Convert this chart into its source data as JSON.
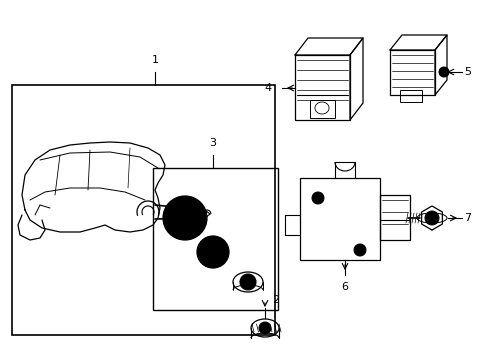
{
  "bg_color": "#ffffff",
  "line_color": "#000000",
  "fig_width": 4.89,
  "fig_height": 3.6,
  "dpi": 100
}
